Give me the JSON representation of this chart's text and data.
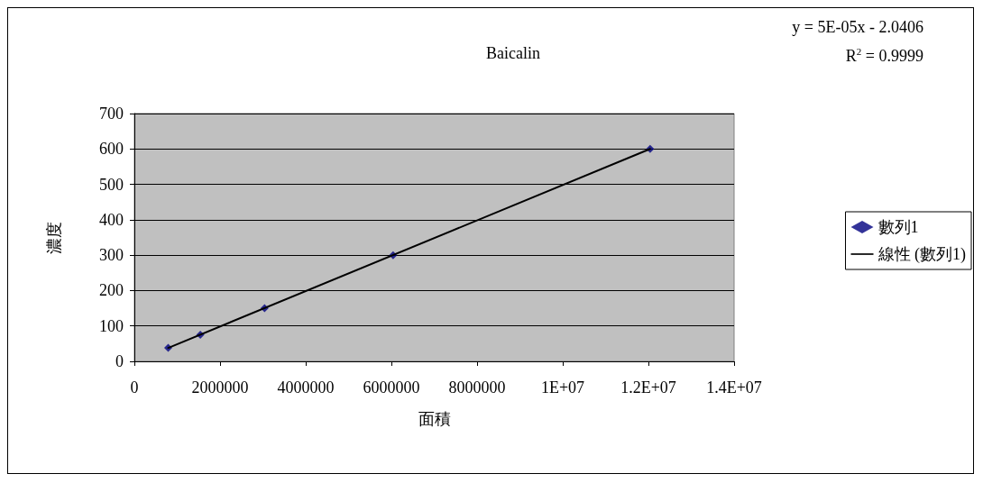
{
  "chart_data": {
    "type": "scatter",
    "title": "Baicalin",
    "xlabel": "面積",
    "ylabel": "濃度",
    "annotations": [
      "y = 5E-05x - 2.0406",
      "R$^{2}$ = 0.9999"
    ],
    "series": [
      {
        "name": "數列1",
        "marker": "diamond",
        "color": "#000080",
        "x": [
          790000,
          1540000,
          3040000,
          6040000,
          12040000
        ],
        "values": [
          38,
          75,
          150,
          300,
          600
        ]
      },
      {
        "name": "線性 (數列1)",
        "type": "line",
        "marker": "none",
        "color": "#000000",
        "x": [
          790000,
          12040000
        ],
        "values": [
          38,
          600
        ]
      }
    ],
    "xlim": [
      0,
      14000000
    ],
    "xticks": [
      0,
      2000000,
      4000000,
      6000000,
      8000000,
      {
        "value": 10000000,
        "label": "1E+07"
      },
      {
        "value": 12000000,
        "label": "1.2E+07"
      },
      {
        "value": 14000000,
        "label": "1.4E+07"
      }
    ],
    "ylim": [
      0,
      700
    ],
    "yticks": [
      0,
      100,
      200,
      300,
      400,
      500,
      600,
      700
    ],
    "grid": "y",
    "legend": "right",
    "line_style": "solid"
  }
}
